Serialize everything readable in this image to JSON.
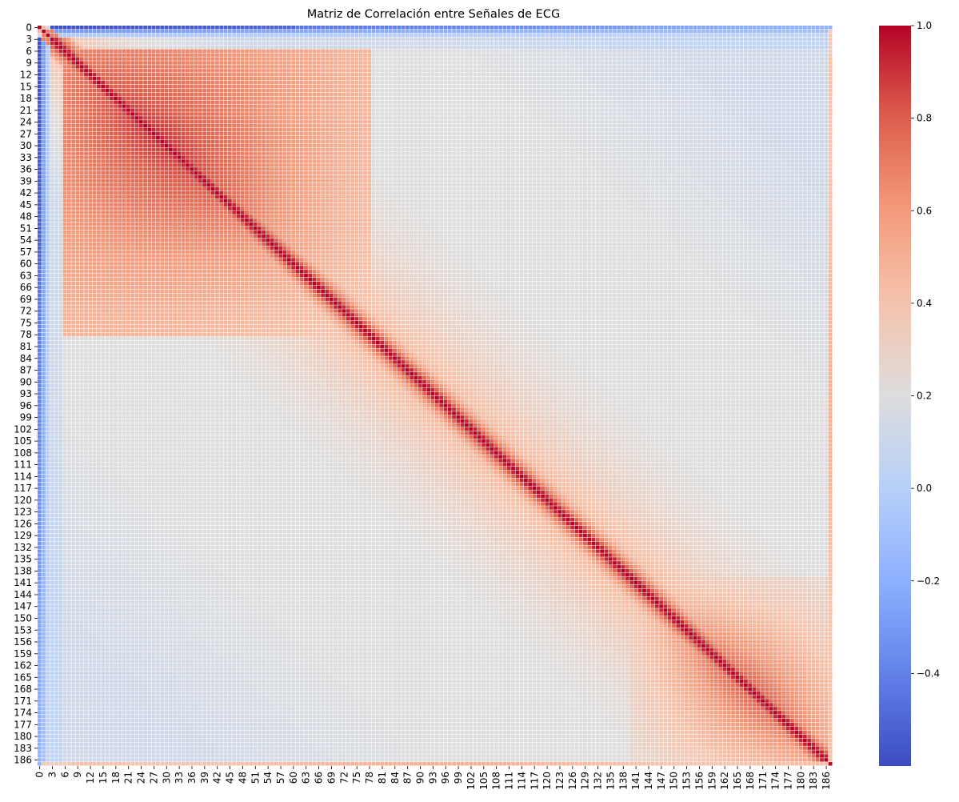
{
  "chart_data": {
    "type": "heatmap",
    "title": "Matriz de Correlación entre Señales de ECG",
    "xlabel": "",
    "ylabel": "",
    "n": 188,
    "tick_step": 3,
    "x_ticks": [
      "0",
      "3",
      "6",
      "9",
      "12",
      "15",
      "18",
      "21",
      "24",
      "27",
      "30",
      "33",
      "36",
      "39",
      "42",
      "45",
      "48",
      "51",
      "54",
      "57",
      "60",
      "63",
      "66",
      "69",
      "72",
      "75",
      "78",
      "81",
      "84",
      "87",
      "90",
      "93",
      "96",
      "99",
      "102",
      "105",
      "108",
      "111",
      "114",
      "117",
      "120",
      "123",
      "126",
      "129",
      "132",
      "135",
      "138",
      "141",
      "144",
      "147",
      "150",
      "153",
      "156",
      "159",
      "162",
      "165",
      "168",
      "171",
      "174",
      "177",
      "180",
      "183",
      "186"
    ],
    "y_ticks": [
      "0",
      "3",
      "6",
      "9",
      "12",
      "15",
      "18",
      "21",
      "24",
      "27",
      "30",
      "33",
      "36",
      "39",
      "42",
      "45",
      "48",
      "51",
      "54",
      "57",
      "60",
      "63",
      "66",
      "69",
      "72",
      "75",
      "78",
      "81",
      "84",
      "87",
      "90",
      "93",
      "96",
      "99",
      "102",
      "105",
      "108",
      "111",
      "114",
      "117",
      "120",
      "123",
      "126",
      "129",
      "132",
      "135",
      "138",
      "141",
      "144",
      "147",
      "150",
      "153",
      "156",
      "159",
      "162",
      "165",
      "168",
      "171",
      "174",
      "177",
      "180",
      "183",
      "186"
    ],
    "value_range": [
      -0.6,
      1.0
    ],
    "colormap": "coolwarm",
    "diagonal_value": 1.0,
    "grid": true,
    "grid_color": "#ffffff",
    "colorbar": {
      "placement": "right",
      "ticks": [
        "1.0",
        "0.8",
        "0.6",
        "0.4",
        "0.2",
        "0.0",
        "−0.2",
        "−0.4"
      ],
      "tick_values": [
        1.0,
        0.8,
        0.6,
        0.4,
        0.2,
        0.0,
        -0.2,
        -0.4
      ]
    },
    "structure": {
      "row_col_0_min_correlation": -0.59,
      "last_index_correlation_with_rest": 0.45,
      "high_block_1_range": [
        8,
        56
      ],
      "high_block_1_peak": 0.9,
      "high_block_2_range": [
        150,
        187
      ],
      "high_block_2_peak": 0.75,
      "background_correlation": 0.15
    },
    "colors": {
      "min": "#3b4cc0",
      "neutral": "#dddddd",
      "max": "#b40426"
    }
  }
}
